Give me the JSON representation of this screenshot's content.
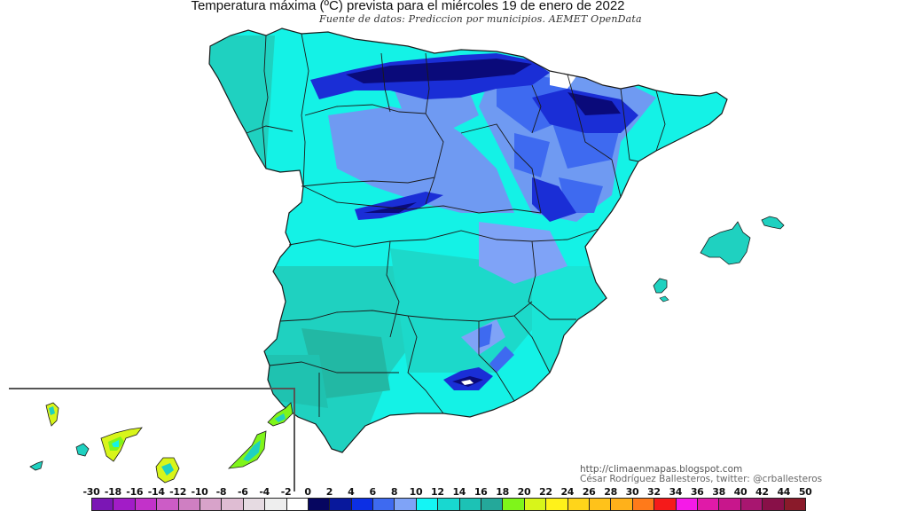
{
  "header": {
    "title": "Temperatura máxima (ºC) prevista para el miércoles 19 de enero de 2022",
    "subtitle": "Fuente de datos: Prediccion por municipios. AEMET OpenData"
  },
  "credits": {
    "url": "http://climaenmapas.blogspot.com",
    "author": "César Rodríguez Ballesteros, twitter: @crballesteros"
  },
  "map": {
    "region": "Spain (Peninsula, Balearic Islands, Canary Islands inset)",
    "variable": "Maximum temperature forecast (ºC)",
    "date": "miércoles 19 de enero de 2022",
    "dominant_ranges": {
      "north_pyrenees_cantabrian": "0-8",
      "north_plateau": "6-12",
      "south_and_coasts": "12-18",
      "canary_islands": "16-22"
    },
    "colors": {
      "land_cyan": "#14f2e6",
      "land_teal": "#1fd1c0",
      "land_teal_dark": "#22b8a4",
      "light_blue": "#6f9af2",
      "mid_blue": "#3a62ea",
      "blue": "#1a2ed6",
      "navy": "#0a0a7a",
      "border": "#1a1a1a",
      "canary_green": "#7ef01a",
      "canary_yellow": "#e8f51a"
    }
  },
  "legend": {
    "labels": [
      "-30",
      "-18",
      "-16",
      "-14",
      "-12",
      "-10",
      "-8",
      "-6",
      "-4",
      "-2",
      "0",
      "2",
      "4",
      "6",
      "8",
      "10",
      "12",
      "14",
      "16",
      "18",
      "20",
      "22",
      "24",
      "26",
      "28",
      "30",
      "32",
      "34",
      "36",
      "38",
      "40",
      "42",
      "44",
      "50"
    ],
    "colors": [
      "#7b16b5",
      "#a21cc7",
      "#c232c9",
      "#cc5cc6",
      "#cf7fc2",
      "#d8a3ca",
      "#dfbdd3",
      "#e6dbe2",
      "#eeeeee",
      "#ffffff",
      "#060660",
      "#08189c",
      "#0c2fe4",
      "#3e6af0",
      "#7fa3f7",
      "#14f5f5",
      "#18d8d0",
      "#1cc2b5",
      "#24a89a",
      "#7ff51a",
      "#d8f51a",
      "#fff21a",
      "#ffd51a",
      "#ffc21a",
      "#ffb11a",
      "#ff7a1a",
      "#f51a1a",
      "#f51ae8",
      "#e01aa8",
      "#c8168c",
      "#a81670",
      "#881048",
      "#8a1a2a"
    ]
  }
}
